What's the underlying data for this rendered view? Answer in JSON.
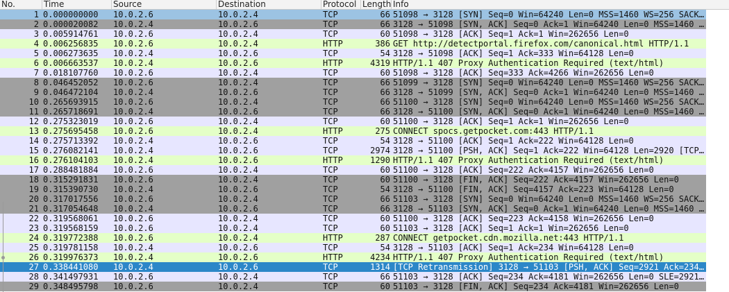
{
  "columns": {
    "no": "No.",
    "time": "Time",
    "source": "Source",
    "destination": "Destination",
    "protocol": "Protocol",
    "length": "Length",
    "info": "Info"
  },
  "colors": {
    "tcp": "#e7e6ff",
    "http": "#e4ffc7",
    "gray": "#a0a0a0",
    "selected": "#2c87c8",
    "first": "#9cc3e3"
  },
  "packets": [
    {
      "no": "1",
      "time": "0.000000000",
      "src": "10.0.2.6",
      "dst": "10.0.2.4",
      "proto": "TCP",
      "len": "66",
      "info": "51098 → 3128 [SYN] Seq=0 Win=64240 Len=0 MSS=1460 WS=256 SACK…",
      "color": "first"
    },
    {
      "no": "2",
      "time": "0.000020082",
      "src": "10.0.2.4",
      "dst": "10.0.2.6",
      "proto": "TCP",
      "len": "66",
      "info": "3128 → 51098 [SYN, ACK] Seq=0 Ack=1 Win=64240 Len=0 MSS=1460 …",
      "color": "gray"
    },
    {
      "no": "3",
      "time": "0.005914761",
      "src": "10.0.2.6",
      "dst": "10.0.2.4",
      "proto": "TCP",
      "len": "60",
      "info": "51098 → 3128 [ACK] Seq=1 Ack=1 Win=262656 Len=0",
      "color": "tcp"
    },
    {
      "no": "4",
      "time": "0.006256835",
      "src": "10.0.2.6",
      "dst": "10.0.2.4",
      "proto": "HTTP",
      "len": "386",
      "info": "GET http://detectportal.firefox.com/canonical.html HTTP/1.1",
      "color": "http"
    },
    {
      "no": "5",
      "time": "0.006273635",
      "src": "10.0.2.4",
      "dst": "10.0.2.6",
      "proto": "TCP",
      "len": "54",
      "info": "3128 → 51098 [ACK] Seq=1 Ack=333 Win=64128 Len=0",
      "color": "tcp"
    },
    {
      "no": "6",
      "time": "0.006663537",
      "src": "10.0.2.4",
      "dst": "10.0.2.6",
      "proto": "HTTP",
      "len": "4319",
      "info": "HTTP/1.1 407 Proxy Authentication Required  (text/html)",
      "color": "http"
    },
    {
      "no": "7",
      "time": "0.018107760",
      "src": "10.0.2.6",
      "dst": "10.0.2.4",
      "proto": "TCP",
      "len": "60",
      "info": "51098 → 3128 [ACK] Seq=333 Ack=4266 Win=262656 Len=0",
      "color": "tcp"
    },
    {
      "no": "8",
      "time": "0.046452052",
      "src": "10.0.2.6",
      "dst": "10.0.2.4",
      "proto": "TCP",
      "len": "66",
      "info": "51099 → 3128 [SYN] Seq=0 Win=64240 Len=0 MSS=1460 WS=256 SACK…",
      "color": "gray"
    },
    {
      "no": "9",
      "time": "0.046472104",
      "src": "10.0.2.4",
      "dst": "10.0.2.6",
      "proto": "TCP",
      "len": "66",
      "info": "3128 → 51099 [SYN, ACK] Seq=0 Ack=1 Win=64240 Len=0 MSS=1460 …",
      "color": "gray"
    },
    {
      "no": "10",
      "time": "0.265693915",
      "src": "10.0.2.6",
      "dst": "10.0.2.4",
      "proto": "TCP",
      "len": "66",
      "info": "51100 → 3128 [SYN] Seq=0 Win=64240 Len=0 MSS=1460 WS=256 SACK…",
      "color": "gray"
    },
    {
      "no": "11",
      "time": "0.265718691",
      "src": "10.0.2.4",
      "dst": "10.0.2.6",
      "proto": "TCP",
      "len": "66",
      "info": "3128 → 51100 [SYN, ACK] Seq=0 Ack=1 Win=64240 Len=0 MSS=1460 …",
      "color": "gray"
    },
    {
      "no": "12",
      "time": "0.275323019",
      "src": "10.0.2.6",
      "dst": "10.0.2.4",
      "proto": "TCP",
      "len": "60",
      "info": "51100 → 3128 [ACK] Seq=1 Ack=1 Win=262656 Len=0",
      "color": "tcp"
    },
    {
      "no": "13",
      "time": "0.275695458",
      "src": "10.0.2.6",
      "dst": "10.0.2.4",
      "proto": "HTTP",
      "len": "275",
      "info": "CONNECT spocs.getpocket.com:443 HTTP/1.1",
      "color": "http"
    },
    {
      "no": "14",
      "time": "0.275713392",
      "src": "10.0.2.4",
      "dst": "10.0.2.6",
      "proto": "TCP",
      "len": "54",
      "info": "3128 → 51100 [ACK] Seq=1 Ack=222 Win=64128 Len=0",
      "color": "tcp"
    },
    {
      "no": "15",
      "time": "0.276082141",
      "src": "10.0.2.4",
      "dst": "10.0.2.6",
      "proto": "TCP",
      "len": "2974",
      "info": "3128 → 51100 [PSH, ACK] Seq=1 Ack=222 Win=64128 Len=2920 [TCP…",
      "color": "tcp"
    },
    {
      "no": "16",
      "time": "0.276104103",
      "src": "10.0.2.4",
      "dst": "10.0.2.6",
      "proto": "HTTP",
      "len": "1290",
      "info": "HTTP/1.1 407 Proxy Authentication Required  (text/html)",
      "color": "http"
    },
    {
      "no": "17",
      "time": "0.288481884",
      "src": "10.0.2.6",
      "dst": "10.0.2.4",
      "proto": "TCP",
      "len": "60",
      "info": "51100 → 3128 [ACK] Seq=222 Ack=4157 Win=262656 Len=0",
      "color": "tcp"
    },
    {
      "no": "18",
      "time": "0.315291831",
      "src": "10.0.2.6",
      "dst": "10.0.2.4",
      "proto": "TCP",
      "len": "60",
      "info": "51100 → 3128 [FIN, ACK] Seq=222 Ack=4157 Win=262656 Len=0",
      "color": "gray"
    },
    {
      "no": "19",
      "time": "0.315390730",
      "src": "10.0.2.4",
      "dst": "10.0.2.6",
      "proto": "TCP",
      "len": "54",
      "info": "3128 → 51100 [FIN, ACK] Seq=4157 Ack=223 Win=64128 Len=0",
      "color": "gray"
    },
    {
      "no": "20",
      "time": "0.317017556",
      "src": "10.0.2.6",
      "dst": "10.0.2.4",
      "proto": "TCP",
      "len": "66",
      "info": "51103 → 3128 [SYN] Seq=0 Win=64240 Len=0 MSS=1460 WS=256 SACK…",
      "color": "gray"
    },
    {
      "no": "21",
      "time": "0.317054648",
      "src": "10.0.2.4",
      "dst": "10.0.2.6",
      "proto": "TCP",
      "len": "66",
      "info": "3128 → 51103 [SYN, ACK] Seq=0 Ack=1 Win=64240 Len=0 MSS=1460 …",
      "color": "gray"
    },
    {
      "no": "22",
      "time": "0.319568061",
      "src": "10.0.2.6",
      "dst": "10.0.2.4",
      "proto": "TCP",
      "len": "60",
      "info": "51100 → 3128 [ACK] Seq=223 Ack=4158 Win=262656 Len=0",
      "color": "tcp"
    },
    {
      "no": "23",
      "time": "0.319568159",
      "src": "10.0.2.6",
      "dst": "10.0.2.4",
      "proto": "TCP",
      "len": "60",
      "info": "51103 → 3128 [ACK] Seq=1 Ack=1 Win=262656 Len=0",
      "color": "tcp"
    },
    {
      "no": "24",
      "time": "0.319772388",
      "src": "10.0.2.6",
      "dst": "10.0.2.4",
      "proto": "HTTP",
      "len": "287",
      "info": "CONNECT getpocket.cdn.mozilla.net:443 HTTP/1.1",
      "color": "http"
    },
    {
      "no": "25",
      "time": "0.319781158",
      "src": "10.0.2.4",
      "dst": "10.0.2.6",
      "proto": "TCP",
      "len": "54",
      "info": "3128 → 51103 [ACK] Seq=1 Ack=234 Win=64128 Len=0",
      "color": "tcp"
    },
    {
      "no": "26",
      "time": "0.319976373",
      "src": "10.0.2.4",
      "dst": "10.0.2.6",
      "proto": "HTTP",
      "len": "4234",
      "info": "HTTP/1.1 407 Proxy Authentication Required  (text/html)",
      "color": "http"
    },
    {
      "no": "27",
      "time": "0.338441080",
      "src": "10.0.2.4",
      "dst": "10.0.2.6",
      "proto": "TCP",
      "len": "1314",
      "info": "[TCP Retransmission] 3128 → 51103 [PSH, ACK] Seq=2921 Ack=234…",
      "color": "selected"
    },
    {
      "no": "28",
      "time": "0.341497931",
      "src": "10.0.2.6",
      "dst": "10.0.2.4",
      "proto": "TCP",
      "len": "66",
      "info": "51103 → 3128 [ACK] Seq=234 Ack=4181 Win=262656 Len=0 SLE=2921…",
      "color": "tcp"
    },
    {
      "no": "29",
      "time": "0.348495798",
      "src": "10.0.2.6",
      "dst": "10.0.2.4",
      "proto": "TCP",
      "len": "60",
      "info": "51103 → 3128 [FIN, ACK] Seq=234 Ack=4181 Win=262656 Len=0",
      "color": "gray"
    }
  ]
}
